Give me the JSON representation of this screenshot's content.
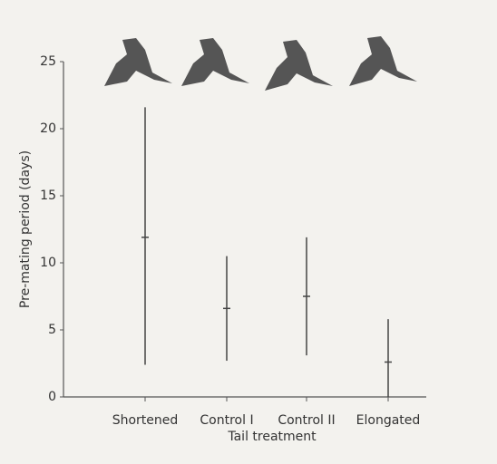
{
  "chart_data": {
    "type": "errorbar",
    "categories": [
      "Shortened",
      "Control I",
      "Control II",
      "Elongated"
    ],
    "values": [
      11.9,
      6.6,
      7.5,
      2.6
    ],
    "low": [
      2.4,
      2.7,
      3.1,
      0
    ],
    "high": [
      21.6,
      10.5,
      11.9,
      5.8
    ],
    "color": "#444444",
    "ylim": [
      0,
      25
    ],
    "yticks": [
      0,
      5,
      10,
      15,
      20,
      25
    ],
    "ylabel": "Pre-mating period (days)",
    "xlabel": "Tail treatment"
  }
}
